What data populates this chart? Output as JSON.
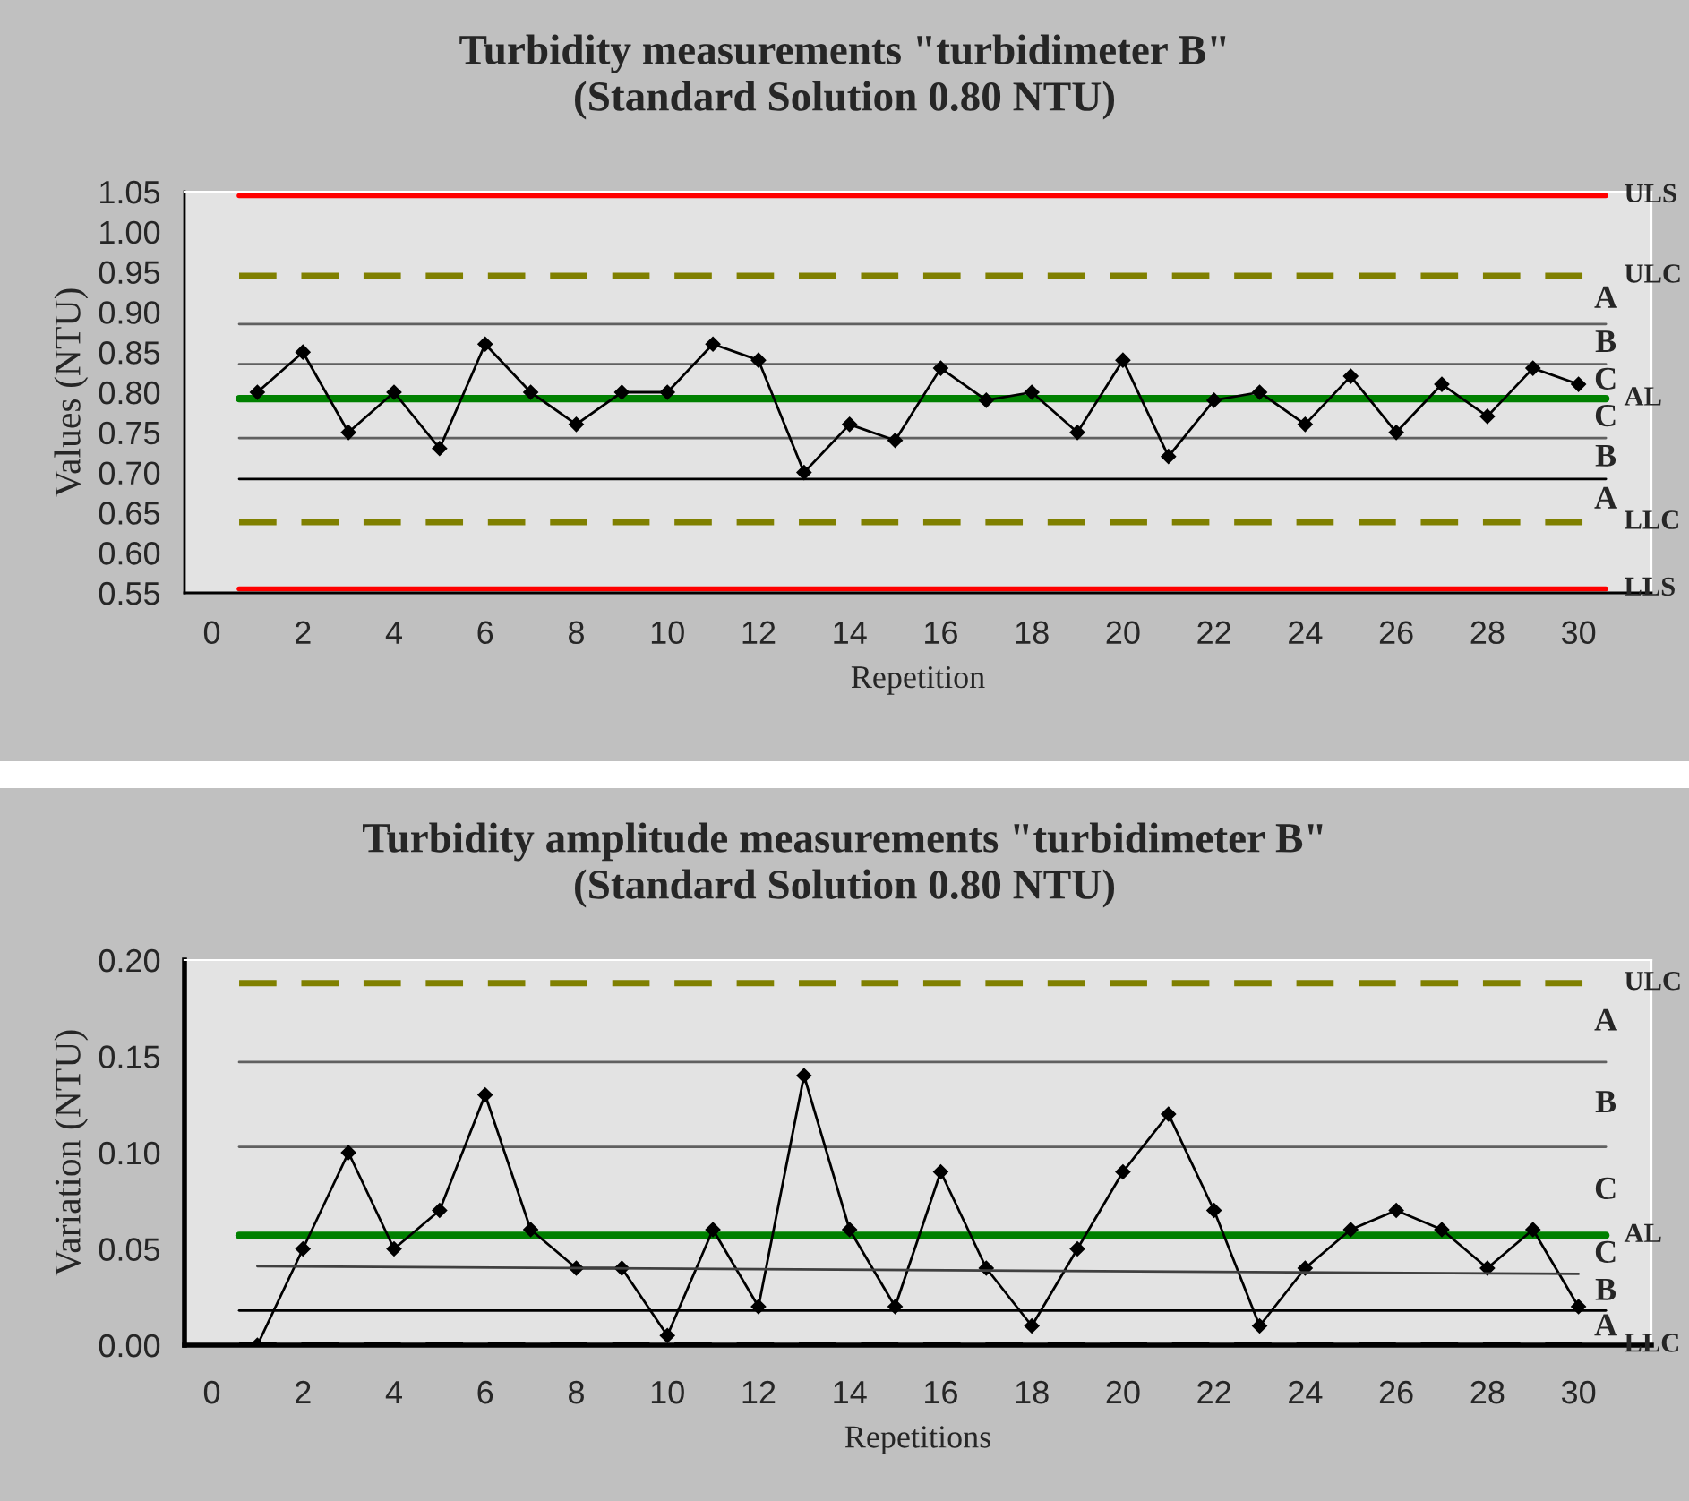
{
  "chart_data": [
    {
      "type": "line",
      "title": "Turbidity measurements \"turbidimeter B\"",
      "subtitle": "(Standard Solution 0.80 NTU)",
      "xlabel": "Repetition",
      "ylabel": "Values (NTU)",
      "x": [
        1,
        2,
        3,
        4,
        5,
        6,
        7,
        8,
        9,
        10,
        11,
        12,
        13,
        14,
        15,
        16,
        17,
        18,
        19,
        20,
        21,
        22,
        23,
        24,
        25,
        26,
        27,
        28,
        29,
        30
      ],
      "series": [
        {
          "color": "#000000",
          "marker": "diamond",
          "values": [
            0.8,
            0.85,
            0.75,
            0.8,
            0.73,
            0.86,
            0.8,
            0.76,
            0.8,
            0.8,
            0.86,
            0.84,
            0.7,
            0.76,
            0.74,
            0.83,
            0.79,
            0.8,
            0.75,
            0.84,
            0.72,
            0.79,
            0.8,
            0.76,
            0.82,
            0.75,
            0.81,
            0.77,
            0.83,
            0.81
          ]
        }
      ],
      "xlim": [
        -0.6,
        31.6
      ],
      "xticks": [
        0,
        2,
        4,
        6,
        8,
        10,
        12,
        14,
        16,
        18,
        20,
        22,
        24,
        26,
        28,
        30
      ],
      "ylim": [
        0.55,
        1.05
      ],
      "yticks": [
        {
          "value": 0.55,
          "label": "0.55"
        },
        {
          "value": 0.6,
          "label": "0.60"
        },
        {
          "value": 0.65,
          "label": "0.65"
        },
        {
          "value": 0.7,
          "label": "0.70"
        },
        {
          "value": 0.75,
          "label": "0.75"
        },
        {
          "value": 0.8,
          "label": "0.80"
        },
        {
          "value": 0.85,
          "label": "0.85"
        },
        {
          "value": 0.9,
          "label": "0.90"
        },
        {
          "value": 0.95,
          "label": "0.95"
        },
        {
          "value": 1.0,
          "label": "1.00"
        },
        {
          "value": 1.05,
          "label": "1.05"
        }
      ],
      "ref_lines": [
        {
          "axis": "y",
          "value": 1.045,
          "color": "#ff0000",
          "line_style": "solid",
          "label": "ULS"
        },
        {
          "axis": "y",
          "value": 0.945,
          "color": "#808000",
          "line_style": "dashed",
          "label": "ULC"
        },
        {
          "axis": "y",
          "value": 0.885,
          "color": "#606060",
          "line_style": "solid"
        },
        {
          "axis": "y",
          "value": 0.835,
          "color": "#606060",
          "line_style": "solid"
        },
        {
          "axis": "y",
          "value": 0.792,
          "color": "#008000",
          "line_style": "solid",
          "label": "AL"
        },
        {
          "axis": "y",
          "value": 0.743,
          "color": "#606060",
          "line_style": "solid"
        },
        {
          "axis": "y",
          "value": 0.692,
          "color": "#000000",
          "line_style": "solid"
        },
        {
          "axis": "y",
          "value": 0.638,
          "color": "#808000",
          "line_style": "dashed",
          "label": "LLC"
        },
        {
          "axis": "y",
          "value": 0.555,
          "color": "#ff0000",
          "line_style": "solid",
          "label": "LLS"
        }
      ],
      "annotations": [
        "A",
        "B",
        "C",
        "C",
        "B",
        "A"
      ],
      "grid": false,
      "legend": false
    },
    {
      "type": "line",
      "title": "Turbidity amplitude measurements \"turbidimeter B\"",
      "subtitle": "(Standard Solution 0.80 NTU)",
      "xlabel": "Repetitions",
      "ylabel": "Variation (NTU)",
      "x": [
        1,
        2,
        3,
        4,
        5,
        6,
        7,
        8,
        9,
        10,
        11,
        12,
        13,
        14,
        15,
        16,
        17,
        18,
        19,
        20,
        21,
        22,
        23,
        24,
        25,
        26,
        27,
        28,
        29,
        30
      ],
      "series": [
        {
          "color": "#000000",
          "marker": "diamond",
          "values": [
            0.0,
            0.05,
            0.1,
            0.05,
            0.07,
            0.13,
            0.06,
            0.04,
            0.04,
            0.005,
            0.06,
            0.02,
            0.14,
            0.06,
            0.02,
            0.09,
            0.04,
            0.01,
            0.05,
            0.09,
            0.12,
            0.07,
            0.01,
            0.04,
            0.06,
            0.07,
            0.06,
            0.04,
            0.06,
            0.02
          ]
        },
        {
          "type": "line",
          "color": "#404040",
          "x": [
            1,
            30
          ],
          "values": [
            0.041,
            0.037
          ]
        }
      ],
      "xlim": [
        -0.6,
        31.6
      ],
      "xticks": [
        0,
        2,
        4,
        6,
        8,
        10,
        12,
        14,
        16,
        18,
        20,
        22,
        24,
        26,
        28,
        30
      ],
      "ylim": [
        0,
        0.2
      ],
      "yticks": [
        {
          "value": 0,
          "label": "0.00"
        },
        {
          "value": 0.05,
          "label": "0.05"
        },
        {
          "value": 0.1,
          "label": "0.10"
        },
        {
          "value": 0.15,
          "label": "0.15"
        },
        {
          "value": 0.2,
          "label": "0.20"
        }
      ],
      "ref_lines": [
        {
          "axis": "y",
          "value": 0.188,
          "color": "#808000",
          "line_style": "dashed",
          "label": "ULC"
        },
        {
          "axis": "y",
          "value": 0.147,
          "color": "#606060",
          "line_style": "solid"
        },
        {
          "axis": "y",
          "value": 0.103,
          "color": "#606060",
          "line_style": "solid"
        },
        {
          "axis": "y",
          "value": 0.057,
          "color": "#008000",
          "line_style": "solid",
          "label": "AL"
        },
        {
          "axis": "y",
          "value": 0.018,
          "color": "#000000",
          "line_style": "solid"
        },
        {
          "axis": "y",
          "value": 0.0,
          "color": "#000000",
          "line_style": "dashed",
          "label": "LLC"
        }
      ],
      "annotations": [
        "A",
        "B",
        "C",
        "C",
        "B",
        "A"
      ],
      "grid": false,
      "legend": false
    }
  ]
}
